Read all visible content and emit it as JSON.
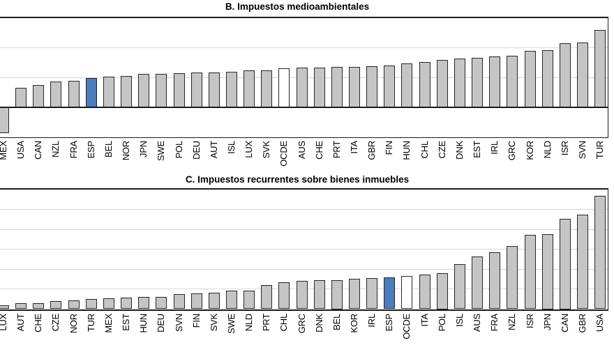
{
  "figure": {
    "background": "#ffffff",
    "language": "es"
  },
  "colors": {
    "bar_fill_default": "#c5c5c5",
    "bar_fill_highlight_esp": "#4a7cbe",
    "bar_fill_reference_ocde": "#ffffff",
    "bar_outline": "#262626",
    "gridline": "#d8d8d8",
    "axis_line": "#1a1a1a",
    "text": "#000000"
  },
  "chart_data": [
    {
      "panel": "B",
      "type": "bar",
      "title": "B. Impuestos medioambientales",
      "categories": [
        "MEX",
        "USA",
        "CAN",
        "NZL",
        "FRA",
        "ESP",
        "BEL",
        "NOR",
        "JPN",
        "SWE",
        "POL",
        "DEU",
        "AUT",
        "ISL",
        "LUX",
        "SVK",
        "OCDE",
        "AUS",
        "CHE",
        "PRT",
        "ITA",
        "GBR",
        "FIN",
        "HUN",
        "CHL",
        "CZE",
        "DNK",
        "EST",
        "IRL",
        "GRC",
        "KOR",
        "NLD",
        "ISR",
        "SVN",
        "TUR"
      ],
      "values": [
        -0.86,
        0.66,
        0.75,
        0.86,
        0.88,
        0.98,
        1.03,
        1.05,
        1.12,
        1.13,
        1.15,
        1.16,
        1.17,
        1.19,
        1.23,
        1.24,
        1.32,
        1.34,
        1.34,
        1.35,
        1.35,
        1.38,
        1.4,
        1.48,
        1.52,
        1.6,
        1.64,
        1.67,
        1.7,
        1.74,
        1.9,
        1.93,
        2.15,
        2.18,
        2.61
      ],
      "bar_colors": {
        "default": "#c5c5c5",
        "ESP": "#4a7cbe",
        "OCDE": "#ffffff"
      },
      "ylim": [
        -1,
        3
      ],
      "gridlines_at": [
        1,
        2
      ],
      "baseline": 0,
      "grid": true,
      "legend": "none",
      "xlabel": "",
      "ylabel": "",
      "x_tick_label_rotation": 90,
      "y_axis_labels_visible": false
    },
    {
      "panel": "C",
      "type": "bar",
      "title": "C. Impuestos recurrentes sobre bienes inmuebles",
      "categories": [
        "LUX",
        "AUT",
        "CHE",
        "CZE",
        "NOR",
        "TUR",
        "MEX",
        "EST",
        "HUN",
        "DEU",
        "SVN",
        "FIN",
        "SVK",
        "SWE",
        "NLD",
        "PRT",
        "CHL",
        "GRC",
        "DNK",
        "BEL",
        "KOR",
        "IRL",
        "ESP",
        "OCDE",
        "ITA",
        "POL",
        "ISL",
        "AUS",
        "FRA",
        "NZL",
        "ISR",
        "JPN",
        "CAN",
        "GBR",
        "USA"
      ],
      "values": [
        0.18,
        0.29,
        0.31,
        0.41,
        0.43,
        0.5,
        0.55,
        0.57,
        0.61,
        0.62,
        0.75,
        0.79,
        0.82,
        0.92,
        0.93,
        1.21,
        1.35,
        1.41,
        1.44,
        1.47,
        1.53,
        1.57,
        1.59,
        1.67,
        1.74,
        1.82,
        2.27,
        2.65,
        2.86,
        3.17,
        3.72,
        3.78,
        4.53,
        4.75,
        5.7
      ],
      "bar_colors": {
        "default": "#c5c5c5",
        "ESP": "#4a7cbe",
        "OCDE": "#ffffff"
      },
      "ylim": [
        0,
        6
      ],
      "gridlines_at": [
        1,
        2,
        3,
        4,
        5
      ],
      "baseline": 0,
      "grid": true,
      "legend": "none",
      "xlabel": "",
      "ylabel": "",
      "x_tick_label_rotation": 90,
      "y_axis_labels_visible": false
    }
  ]
}
